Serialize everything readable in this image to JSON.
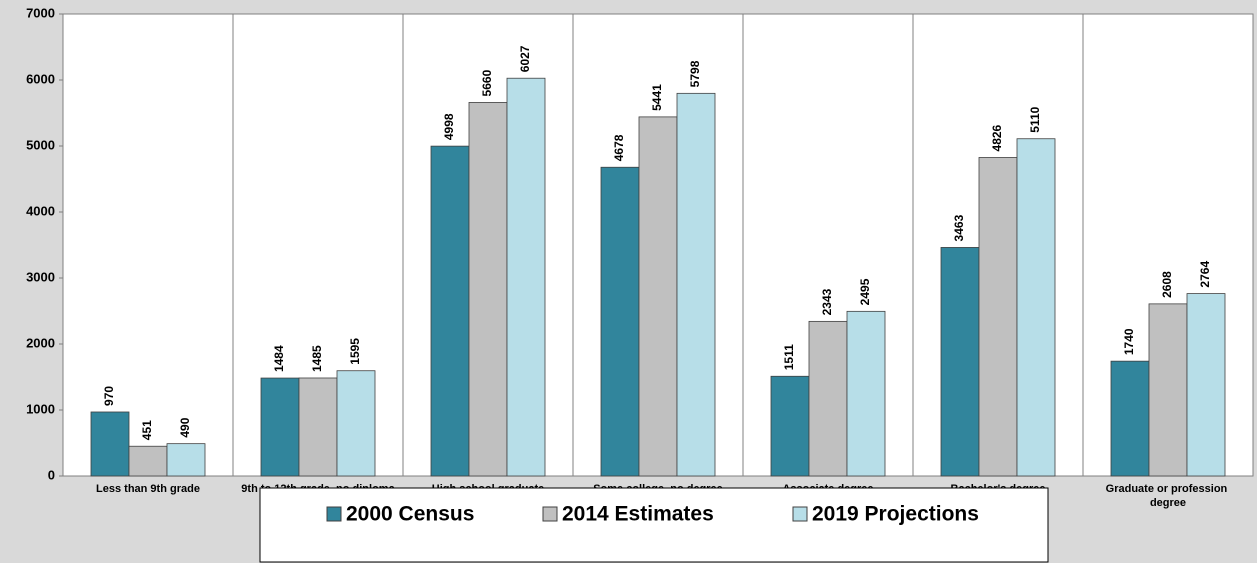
{
  "chart_data": {
    "type": "bar",
    "categories": [
      "Less than 9th grade",
      "9th to 12th grade, no diploma",
      "High school graduate",
      "Some college, no degree",
      "Associate degree",
      "Bachelor's degree",
      "Graduate or profession degree"
    ],
    "series": [
      {
        "name": "2000 Census",
        "color": "#31859c",
        "values": [
          970,
          1484,
          4998,
          4678,
          1511,
          3463,
          1740
        ]
      },
      {
        "name": "2014 Estimates",
        "color": "#c0c0c0",
        "values": [
          451,
          1485,
          5660,
          5441,
          2343,
          4826,
          2608
        ]
      },
      {
        "name": "2019 Projections",
        "color": "#b7dee8",
        "values": [
          490,
          1595,
          6027,
          5798,
          2495,
          5110,
          2764
        ]
      }
    ],
    "ylim": [
      0,
      7000
    ],
    "yticks": [
      0,
      1000,
      2000,
      3000,
      4000,
      5000,
      6000,
      7000
    ],
    "grid": false,
    "legend": "bottom"
  }
}
